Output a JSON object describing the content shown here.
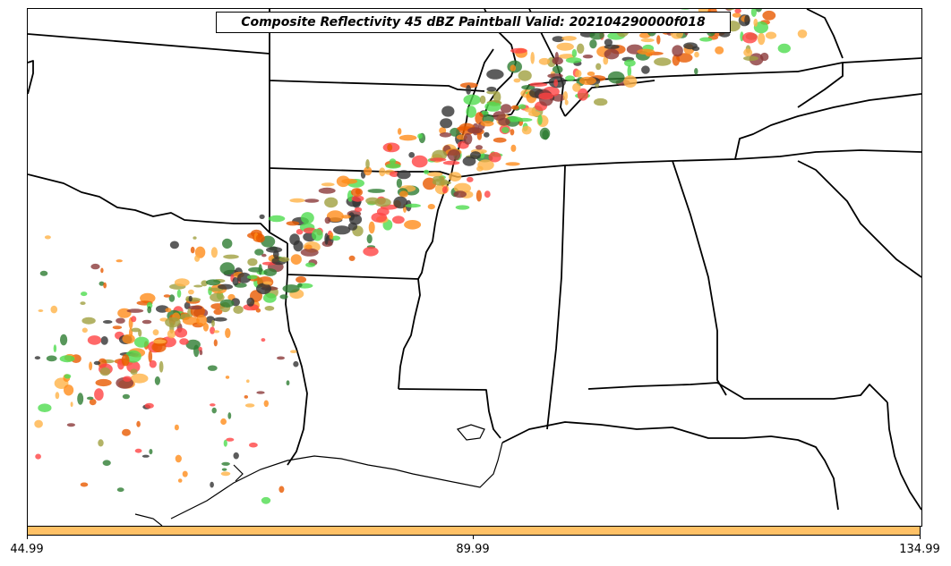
{
  "title": "Composite Reflectivity 45 dBZ Paintball Valid: 202104290000f018",
  "colorbar": {
    "color": "#ffc166",
    "ticks": [
      "44.99",
      "89.99",
      "134.99"
    ]
  },
  "map": {
    "background": "#ffffff",
    "border_color": "#000000",
    "paintball_colors": [
      "#2e7d32",
      "#4fdc4f",
      "#ff4444",
      "#ff8c1a",
      "#ffb347",
      "#a0a040",
      "#8b3a3a",
      "#e85a00",
      "#333333"
    ]
  }
}
